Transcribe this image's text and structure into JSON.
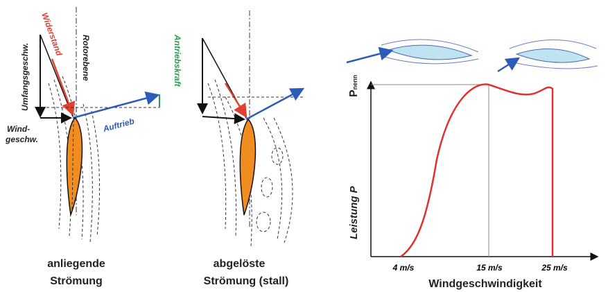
{
  "left": {
    "labels": {
      "drag": "Widerstand",
      "rotor_plane": "Rotorebene",
      "circumferential_speed": "Umfangsgeschw.",
      "drive_force": "Antriebskraft",
      "wind_speed": [
        "Wind-",
        "geschw."
      ],
      "lift": "Auftrieb"
    },
    "caption": [
      "anliegende",
      "Strömung"
    ]
  },
  "middle": {
    "caption": [
      "abgelöste",
      "Strömung (stall)"
    ]
  },
  "power_curve": {
    "rated_power": {
      "symbol": "P",
      "subscript": "nenn"
    },
    "y_label": "Leistung P",
    "x_label": "Windgeschwindigkeit",
    "x_ticks": [
      "4 m/s",
      "15 m/s",
      "25 m/s"
    ]
  }
}
